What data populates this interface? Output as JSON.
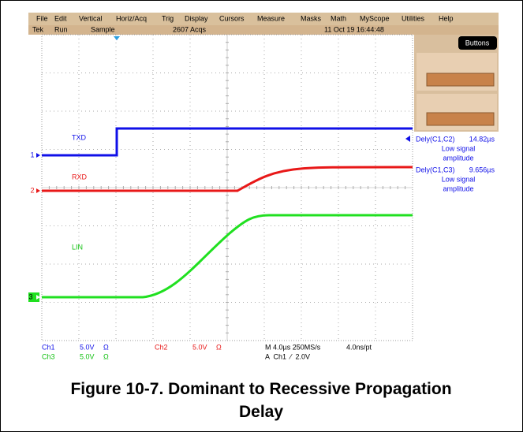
{
  "menu": [
    "File",
    "Edit",
    "Vertical",
    "Horiz/Acq",
    "Trig",
    "Display",
    "Cursors",
    "Measure",
    "Masks",
    "Math",
    "MyScope",
    "Utilities",
    "Help"
  ],
  "status": {
    "brand": "Tek",
    "state": "Run",
    "acq_mode": "Sample",
    "acqs": "2607 Acqs",
    "datetime": "11 Oct 19 16:44:48"
  },
  "buttons_label": "Buttons",
  "measurements": [
    {
      "label": "Dely(C1,C2)",
      "value": "14.82µs",
      "note": [
        "Low signal",
        "amplitude"
      ]
    },
    {
      "label": "Dely(C1,C3)",
      "value": "9.656µs",
      "note": [
        "Low signal",
        "amplitude"
      ]
    }
  ],
  "traces": [
    {
      "label": "TXD",
      "marker": "1"
    },
    {
      "label": "RXD",
      "marker": "2"
    },
    {
      "label": "LIN",
      "marker": "3"
    }
  ],
  "readouts": {
    "ch1": [
      "Ch1",
      "5.0V",
      "Ω"
    ],
    "ch3": [
      "Ch3",
      "5.0V",
      "Ω"
    ],
    "ch2": [
      "Ch2",
      "5.0V",
      "Ω"
    ],
    "timebase": [
      "M 4.0µs 250MS/s",
      "4.0ns/pt"
    ],
    "trigger": "A  Ch1  ⁄  2.0V"
  },
  "caption": "Figure 10-7. Dominant to Recessive Propagation Delay"
}
